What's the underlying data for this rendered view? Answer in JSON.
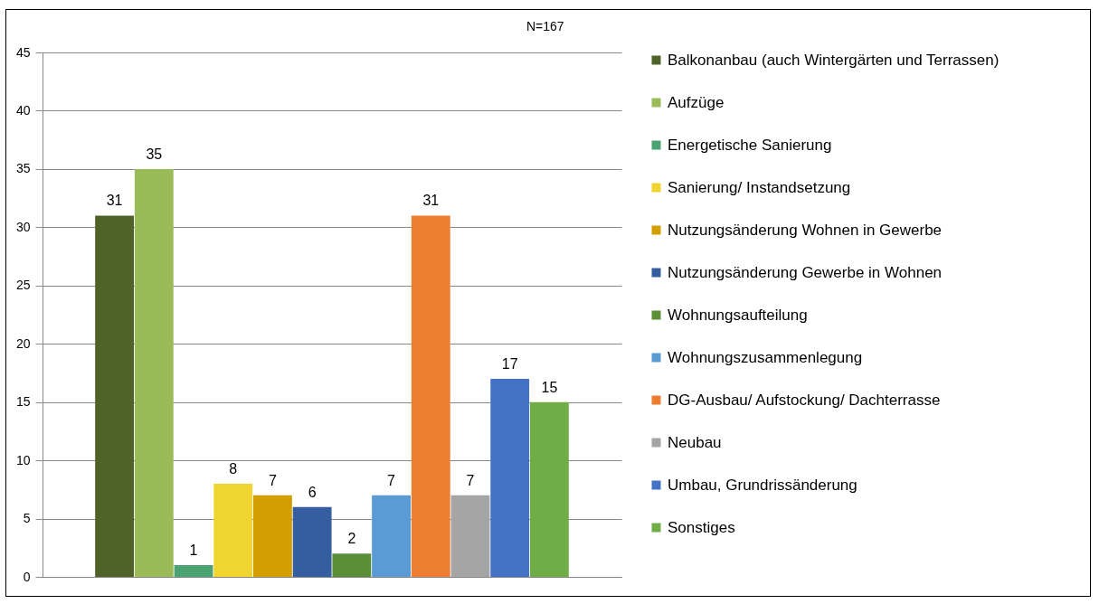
{
  "chart_data": {
    "type": "bar",
    "categories": [
      null
    ],
    "series": [
      {
        "name": "Balkonanbau (auch Wintergärten und Terrassen)",
        "color": "#4f6228",
        "values": [
          31
        ]
      },
      {
        "name": "Aufzüge",
        "color": "#9bbb59",
        "values": [
          35
        ]
      },
      {
        "name": "Energetische Sanierung",
        "color": "#4ba373",
        "values": [
          1
        ]
      },
      {
        "name": "Sanierung/ Instandsetzung",
        "color": "#f0d430",
        "values": [
          8
        ]
      },
      {
        "name": "Nutzungsänderung Wohnen in Gewerbe",
        "color": "#d39e00",
        "values": [
          7
        ]
      },
      {
        "name": "Nutzungsänderung Gewerbe in Wohnen",
        "color": "#355ea0",
        "values": [
          6
        ]
      },
      {
        "name": "Wohnungsaufteilung",
        "color": "#5b8f37",
        "values": [
          2
        ]
      },
      {
        "name": "Wohnungszusammenlegung",
        "color": "#5b9bd5",
        "values": [
          7
        ]
      },
      {
        "name": "DG-Ausbau/ Aufstockung/ Dachterrasse",
        "color": "#ed7d31",
        "values": [
          31
        ]
      },
      {
        "name": "Neubau",
        "color": "#a5a5a5",
        "values": [
          7
        ]
      },
      {
        "name": "Umbau, Grundrissänderung",
        "color": "#4472c4",
        "values": [
          17
        ]
      },
      {
        "name": "Sonstiges",
        "color": "#70ad47",
        "values": [
          15
        ]
      }
    ],
    "annotations": [
      "N=167"
    ],
    "ylim": [
      0,
      45
    ],
    "yticks": [
      0,
      5,
      10,
      15,
      20,
      25,
      30,
      35,
      40,
      45
    ],
    "grid": "y",
    "legend": "right",
    "data_labels": true,
    "tick_labels": "y"
  }
}
